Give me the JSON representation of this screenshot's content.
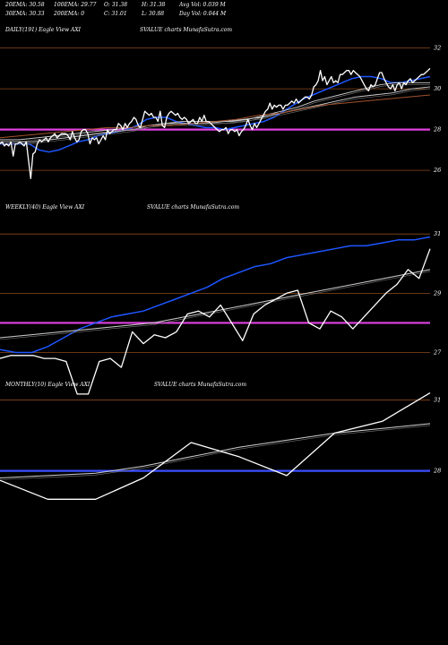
{
  "header": {
    "row1": [
      {
        "label": "20EMA: 30.58"
      },
      {
        "label": "100EMA: 29.77"
      },
      {
        "label": "O: 31.38"
      },
      {
        "label": "H: 31.38"
      },
      {
        "label": "Avg Vol: 0.039 M"
      }
    ],
    "row2": [
      {
        "label": "30EMA: 30.33"
      },
      {
        "label": "200EMA: 0"
      },
      {
        "label": "C: 31.01"
      },
      {
        "label": "L: 30.88"
      },
      {
        "label": "Day Vol: 0.044  M"
      }
    ]
  },
  "colors": {
    "background": "#000000",
    "price": "#ffffff",
    "ema20": "#1e56ff",
    "level_magenta": "#e040e0",
    "level_blue": "#3a4fff",
    "grid": "#8a4a1c",
    "ema_slow": "#cfcfcf",
    "ema_brown": "#a0522d"
  },
  "chart_data": [
    {
      "type": "line",
      "title": "DAILY(191) Eagle  View  AXI",
      "subtitle": "SVALUE charts MunafaSutra.com",
      "ylim": [
        24.6,
        32.6
      ],
      "yticks": [
        26,
        28,
        30,
        32
      ],
      "level": 28,
      "level_color": "magenta",
      "series": [
        {
          "role": "price",
          "y": [
            27.3,
            27.4,
            27.2,
            27.3,
            27.2,
            27.4,
            26.7,
            27.3,
            27.3,
            27.4,
            27.3,
            27.2,
            27.4,
            26.5,
            25.6,
            26.8,
            26.9,
            27.3,
            27.5,
            27.4,
            27.5,
            27.6,
            27.4,
            27.6,
            27.7,
            27.8,
            27.6,
            27.7,
            27.8,
            27.8,
            27.8,
            27.7,
            27.5,
            27.9,
            27.6,
            27.4,
            27.5,
            27.9,
            28.0,
            28.0,
            27.8,
            27.3,
            27.6,
            27.5,
            27.6,
            27.3,
            27.5,
            27.7,
            27.5,
            28.0,
            27.8,
            27.9,
            28.0,
            28.0,
            28.3,
            28.2,
            28.0,
            28.3,
            28.1,
            28.3,
            28.4,
            28.6,
            28.5,
            28.2,
            28.1,
            28.5,
            28.9,
            28.8,
            28.7,
            28.8,
            28.6,
            28.6,
            28.4,
            28.9,
            28.2,
            28.1,
            28.6,
            28.8,
            28.9,
            28.8,
            28.7,
            28.8,
            28.6,
            28.5,
            28.6,
            28.5,
            28.3,
            28.4,
            28.5,
            28.3,
            28.3,
            28.6,
            28.4,
            28.7,
            28.4,
            28.4,
            28.3,
            28.2,
            28.1,
            28.0,
            27.9,
            28.0,
            28.0,
            28.1,
            27.8,
            28.0,
            28.0,
            27.9,
            28.0,
            27.7,
            27.9,
            28.0,
            28.2,
            28.5,
            28.2,
            28.0,
            28.3,
            28.1,
            28.3,
            28.5,
            28.7,
            28.9,
            29.0,
            29.3,
            29.0,
            29.2,
            29.1,
            29.2,
            29.2,
            29.0,
            29.2,
            29.2,
            29.3,
            29.4,
            29.3,
            29.5,
            29.3,
            29.4,
            29.5,
            29.6,
            29.6,
            29.5,
            29.7,
            30.1,
            30.2,
            30.4,
            30.9,
            30.4,
            30.6,
            30.2,
            30.4,
            30.6,
            30.3,
            30.4,
            30.3,
            30.7,
            30.7,
            30.8,
            30.9,
            30.9,
            30.7,
            30.9,
            30.8,
            30.7,
            30.6,
            30.4,
            30.2,
            30.0,
            29.9,
            30.2,
            30.1,
            30.2,
            30.5,
            30.8,
            30.8,
            30.5,
            30.3,
            30.1,
            30.0,
            30.2,
            29.9,
            30.2,
            30.3,
            30.0,
            30.3,
            30.2,
            30.4,
            30.5,
            30.3,
            30.4,
            30.5,
            30.6,
            30.7,
            30.7,
            30.8,
            30.9,
            31.0
          ]
        },
        {
          "role": "ema20",
          "y": [
            27.3,
            27.3,
            27.3,
            27.3,
            27.0,
            26.9,
            27.0,
            27.2,
            27.4,
            27.5,
            27.7,
            27.8,
            27.9,
            28.0,
            28.2,
            28.5,
            28.6,
            28.6,
            28.4,
            28.3,
            28.2,
            28.1,
            28.1,
            28.0,
            28.1,
            28.2,
            28.3,
            28.4,
            28.6,
            28.9,
            29.2,
            29.5,
            29.7,
            29.9,
            30.1,
            30.3,
            30.5,
            30.6,
            30.6,
            30.5,
            30.3,
            30.3,
            30.4,
            30.5,
            30.6
          ]
        },
        {
          "role": "ema30",
          "y": [
            27.4,
            27.4,
            27.4,
            27.5,
            27.6,
            27.7,
            27.8,
            27.9,
            28.0,
            28.2,
            28.3,
            28.4,
            28.4,
            28.4,
            28.4,
            28.5,
            28.7,
            28.9,
            29.1,
            29.4,
            29.6,
            29.8,
            30.0,
            30.2,
            30.3,
            30.3,
            30.3
          ]
        },
        {
          "role": "ema50",
          "y": [
            27.5,
            27.5,
            27.6,
            27.7,
            27.8,
            27.9,
            28.0,
            28.1,
            28.2,
            28.3,
            28.3,
            28.3,
            28.4,
            28.5,
            28.6,
            28.8,
            29.0,
            29.2,
            29.4,
            29.6,
            29.7,
            29.8,
            30.0,
            30.1
          ]
        },
        {
          "role": "ema100",
          "y": [
            27.6,
            27.7,
            27.8,
            27.9,
            28.0,
            28.1,
            28.1,
            28.2,
            28.2,
            28.3,
            28.4,
            28.5,
            28.7,
            28.8,
            29.0,
            29.2,
            29.3,
            29.4,
            29.5,
            29.6,
            29.7
          ]
        }
      ]
    },
    {
      "type": "line",
      "title": "WEEKLY(40) Eagle  View  AXI",
      "subtitle": "SVALUE charts MunafaSutra.com",
      "ylim": [
        26.2,
        31.7
      ],
      "yticks": [
        27,
        29,
        31
      ],
      "level": 28,
      "level_color": "magenta",
      "series": [
        {
          "role": "price",
          "y": [
            26.8,
            26.9,
            26.9,
            26.9,
            26.8,
            26.8,
            26.7,
            25.6,
            25.6,
            26.7,
            26.8,
            26.5,
            27.7,
            27.3,
            27.6,
            27.5,
            27.7,
            28.3,
            28.4,
            28.2,
            28.6,
            28.0,
            27.4,
            28.3,
            28.6,
            28.8,
            29.0,
            29.1,
            28.0,
            27.8,
            28.4,
            28.2,
            27.8,
            28.2,
            28.6,
            29.0,
            29.3,
            29.8,
            29.5,
            30.5
          ]
        },
        {
          "role": "ema20",
          "y": [
            27.1,
            27.0,
            27.0,
            27.2,
            27.5,
            27.8,
            28.0,
            28.2,
            28.3,
            28.4,
            28.6,
            28.8,
            29.0,
            29.2,
            29.5,
            29.7,
            29.9,
            30.0,
            30.2,
            30.3,
            30.4,
            30.5,
            30.6,
            30.6,
            30.7,
            30.8,
            30.8,
            30.9
          ]
        },
        {
          "role": "ema_slow",
          "y": [
            27.5,
            27.6,
            27.7,
            27.8,
            27.9,
            28.0,
            28.2,
            28.4,
            28.6,
            28.8,
            29.0,
            29.2,
            29.4,
            29.6,
            29.8
          ]
        }
      ]
    },
    {
      "type": "line",
      "title": "MONTHLY(10) Eagle  View  AXI",
      "subtitle": "SVALUE charts MunafaSutra.com",
      "ylim": [
        24.8,
        31.4
      ],
      "yticks": [
        28,
        31
      ],
      "level": 28,
      "level_color": "blue",
      "series": [
        {
          "role": "price",
          "y": [
            27.6,
            26.8,
            26.8,
            27.7,
            29.2,
            28.6,
            27.8,
            29.6,
            30.1,
            31.3
          ]
        },
        {
          "role": "ema_slow",
          "y": [
            27.7,
            27.8,
            27.9,
            28.2,
            28.6,
            29.0,
            29.3,
            29.6,
            29.8,
            30.0
          ]
        }
      ]
    }
  ]
}
